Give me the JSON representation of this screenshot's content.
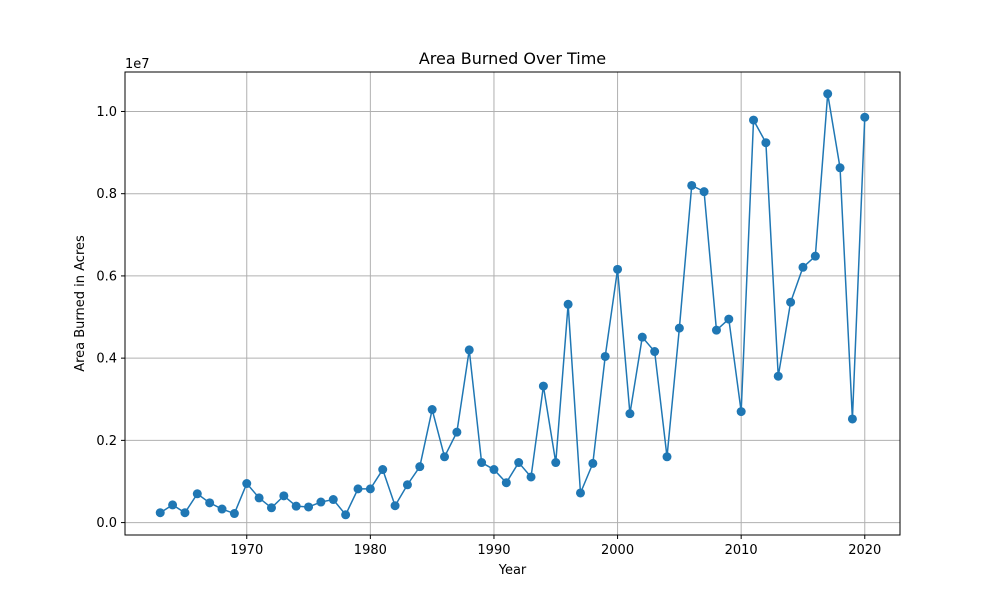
{
  "chart_data": {
    "type": "line",
    "title": "Area Burned Over Time",
    "xlabel": "Year",
    "ylabel": "Area Burned in Acres",
    "y_offset_label": "1e7",
    "xlim": [
      1960.15,
      2022.85
    ],
    "ylim": [
      -302000,
      10960000
    ],
    "x_ticks": [
      1970,
      1980,
      1990,
      2000,
      2010,
      2020
    ],
    "y_ticks": [
      0,
      2000000,
      4000000,
      6000000,
      8000000,
      10000000
    ],
    "y_tick_labels": [
      "0.0",
      "0.2",
      "0.4",
      "0.6",
      "0.8",
      "1.0"
    ],
    "grid": true,
    "marker": "circle",
    "line_color": "#1f77b4",
    "series": [
      {
        "x": [
          1963,
          1964,
          1965,
          1966,
          1967,
          1968,
          1969,
          1970,
          1971,
          1972,
          1973,
          1974,
          1975,
          1976,
          1977,
          1978,
          1979,
          1980,
          1981,
          1982,
          1983,
          1984,
          1985,
          1986,
          1987,
          1988,
          1989,
          1990,
          1991,
          1992,
          1993,
          1994,
          1995,
          1996,
          1997,
          1998,
          1999,
          2000,
          2001,
          2002,
          2003,
          2004,
          2005,
          2006,
          2007,
          2008,
          2009,
          2010,
          2011,
          2012,
          2013,
          2014,
          2015,
          2016,
          2017,
          2018,
          2019,
          2020
        ],
        "y": [
          240000,
          430000,
          240000,
          700000,
          480000,
          330000,
          220000,
          950000,
          600000,
          360000,
          650000,
          400000,
          380000,
          500000,
          560000,
          190000,
          820000,
          820000,
          1290000,
          410000,
          920000,
          1360000,
          2750000,
          1600000,
          2200000,
          4200000,
          1460000,
          1290000,
          970000,
          1460000,
          1110000,
          3320000,
          1460000,
          5310000,
          720000,
          1440000,
          4040000,
          6160000,
          2650000,
          4510000,
          4160000,
          1600000,
          4730000,
          8200000,
          8050000,
          4680000,
          4950000,
          2700000,
          9790000,
          9240000,
          3560000,
          5360000,
          6210000,
          6480000,
          10430000,
          8630000,
          2520000,
          9860000
        ]
      }
    ]
  }
}
